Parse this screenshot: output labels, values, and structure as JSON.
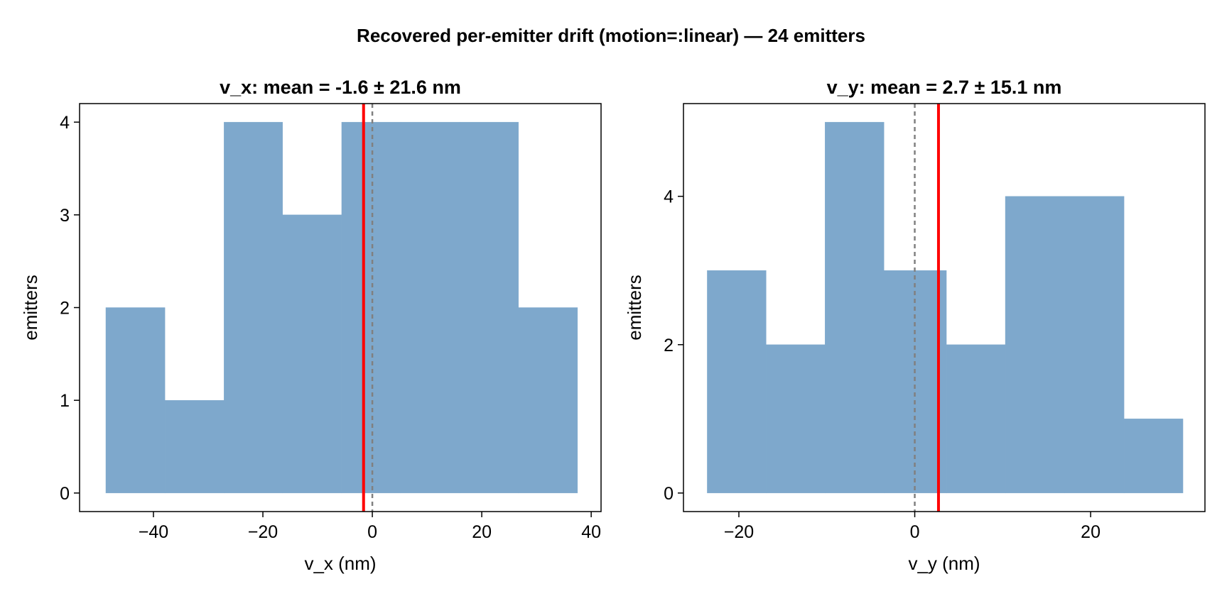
{
  "figure": {
    "title": "Recovered per-emitter drift (motion=:linear) — 24 emitters"
  },
  "chart_data": [
    {
      "type": "bar",
      "title": "v_x: mean = -1.6 ± 21.6 nm",
      "xlabel": "v_x (nm)",
      "ylabel": "emitters",
      "bin_edges": [
        -48.7,
        -37.9,
        -27.1,
        -16.4,
        -5.6,
        5.2,
        16.0,
        26.7,
        37.5
      ],
      "counts": [
        2,
        1,
        4,
        3,
        4,
        4,
        4,
        2
      ],
      "xlim": [
        -53.5,
        41.8
      ],
      "ylim": [
        -0.2,
        4.2
      ],
      "xticks": [
        -40,
        -20,
        0,
        20,
        40
      ],
      "xtick_labels": [
        "−40",
        "−20",
        "0",
        "20",
        "40"
      ],
      "yticks": [
        0,
        1,
        2,
        3,
        4
      ],
      "ytick_labels": [
        "0",
        "1",
        "2",
        "3",
        "4"
      ],
      "mean_line": {
        "value": -1.6,
        "color": "#ff0000"
      },
      "zero_line": {
        "value": 0,
        "color": "#808080",
        "style": "dashed"
      },
      "bar_color": "#7ea8cc",
      "grid": false,
      "legend": "none"
    },
    {
      "type": "bar",
      "title": "v_y: mean = 2.7 ± 15.1 nm",
      "xlabel": "v_y (nm)",
      "ylabel": "emitters",
      "bin_edges": [
        -23.6,
        -16.9,
        -10.2,
        -3.5,
        3.6,
        10.3,
        17.0,
        23.8,
        30.5
      ],
      "counts": [
        3,
        2,
        5,
        3,
        2,
        4,
        4,
        1
      ],
      "xlim": [
        -26.3,
        33.0
      ],
      "ylim": [
        -0.25,
        5.25
      ],
      "xticks": [
        -20,
        0,
        20
      ],
      "xtick_labels": [
        "−20",
        "0",
        "20"
      ],
      "yticks": [
        0,
        2,
        4
      ],
      "ytick_labels": [
        "0",
        "2",
        "4"
      ],
      "mean_line": {
        "value": 2.7,
        "color": "#ff0000"
      },
      "zero_line": {
        "value": 0,
        "color": "#808080",
        "style": "dashed"
      },
      "bar_color": "#7ea8cc",
      "grid": false,
      "legend": "none"
    }
  ]
}
